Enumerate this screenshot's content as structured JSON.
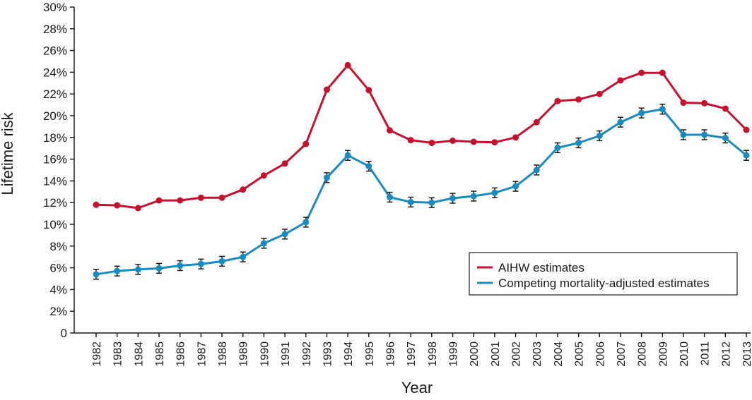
{
  "chart_data": {
    "type": "line",
    "title": "",
    "xlabel": "Year",
    "ylabel": "Lifetime risk",
    "ylim": [
      0,
      30
    ],
    "yticks": [
      0,
      2,
      4,
      6,
      8,
      10,
      12,
      14,
      16,
      18,
      20,
      22,
      24,
      26,
      28,
      30
    ],
    "ytick_labels": [
      "0",
      "2%",
      "4%",
      "6%",
      "8%",
      "10%",
      "12%",
      "14%",
      "16%",
      "18%",
      "20%",
      "22%",
      "24%",
      "26%",
      "28%",
      "30%"
    ],
    "categories": [
      "1982",
      "1983",
      "1984",
      "1985",
      "1986",
      "1987",
      "1988",
      "1989",
      "1990",
      "1991",
      "1992",
      "1993",
      "1994",
      "1995",
      "1996",
      "1997",
      "1998",
      "1999",
      "2000",
      "2001",
      "2002",
      "2003",
      "2004",
      "2005",
      "2006",
      "2007",
      "2008",
      "2009",
      "2010",
      "2011",
      "2012",
      "2013"
    ],
    "legend_position": "bottom-right",
    "series": [
      {
        "name": "AIHW estimates",
        "color": "#c8102e",
        "values": [
          11.8,
          11.75,
          11.5,
          12.2,
          12.2,
          12.45,
          12.45,
          13.2,
          14.5,
          15.6,
          17.4,
          22.4,
          24.65,
          22.35,
          18.65,
          17.75,
          17.5,
          17.7,
          17.6,
          17.55,
          18.0,
          19.4,
          21.35,
          21.5,
          22.0,
          23.25,
          23.95,
          23.95,
          21.2,
          21.15,
          20.65,
          18.7
        ],
        "error": null
      },
      {
        "name": "Competing mortality-adjusted estimates",
        "color": "#1a8bbf",
        "values": [
          5.4,
          5.7,
          5.85,
          5.95,
          6.2,
          6.35,
          6.6,
          7.0,
          8.25,
          9.1,
          10.2,
          14.3,
          16.35,
          15.35,
          12.5,
          12.05,
          12.0,
          12.4,
          12.6,
          12.9,
          13.5,
          15.0,
          17.05,
          17.5,
          18.15,
          19.4,
          20.25,
          20.6,
          18.25,
          18.25,
          17.95,
          16.35
        ],
        "error": 0.45
      }
    ]
  }
}
